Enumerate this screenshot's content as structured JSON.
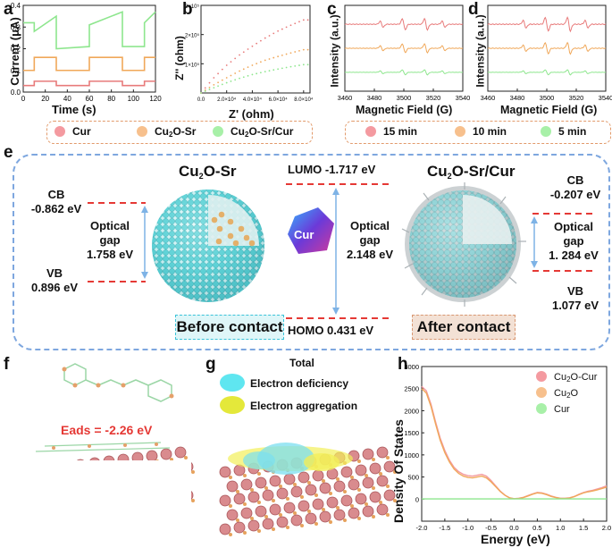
{
  "panels": {
    "a": "a",
    "b": "b",
    "c": "c",
    "d": "d",
    "e": "e",
    "f": "f",
    "g": "g",
    "h": "h"
  },
  "colors": {
    "red": "#e87b7b",
    "orange": "#f0a85a",
    "green": "#8ee68e",
    "pink": "#f49aa0",
    "peach": "#f7c08d",
    "lightgreen": "#a8f0a8",
    "blue": "#7eb3e6",
    "dash": "#e53935"
  },
  "chart_data": [
    {
      "id": "a",
      "type": "line",
      "title": "",
      "xlabel": "Time (s)",
      "ylabel": "Current (μA)",
      "xlim": [
        0,
        120
      ],
      "ylim": [
        0,
        0.4
      ],
      "xticks": [
        "0",
        "20",
        "40",
        "60",
        "80",
        "100",
        "120"
      ],
      "yticks": [
        "0.0",
        "0.1",
        "0.2",
        "0.3",
        "0.4"
      ],
      "series": [
        {
          "name": "Cur",
          "color": "#e87b7b",
          "x": [
            0,
            10,
            10,
            30,
            30,
            60,
            60,
            90,
            90,
            110,
            110,
            120
          ],
          "y": [
            0.03,
            0.03,
            0.05,
            0.05,
            0.03,
            0.03,
            0.05,
            0.05,
            0.03,
            0.03,
            0.05,
            0.05
          ]
        },
        {
          "name": "Cu2O-Sr",
          "color": "#f0a85a",
          "x": [
            0,
            10,
            10,
            30,
            30,
            60,
            60,
            90,
            90,
            110,
            110,
            120
          ],
          "y": [
            0.1,
            0.1,
            0.16,
            0.16,
            0.1,
            0.1,
            0.16,
            0.16,
            0.1,
            0.1,
            0.16,
            0.16
          ]
        },
        {
          "name": "Cu2O-Sr/Cur",
          "color": "#8ee68e",
          "x": [
            0,
            10,
            10,
            30,
            30,
            60,
            60,
            90,
            90,
            110,
            110,
            120
          ],
          "y": [
            0.32,
            0.32,
            0.28,
            0.35,
            0.2,
            0.21,
            0.31,
            0.37,
            0.21,
            0.21,
            0.32,
            0.37
          ]
        }
      ]
    },
    {
      "id": "b",
      "type": "scatter",
      "xlabel": "Z' (ohm)",
      "ylabel": "Z'' (ohm)",
      "xlim": [
        0,
        85000
      ],
      "ylim": [
        0,
        300000
      ],
      "xticks": [
        "0.0",
        "2.0×10⁴",
        "4.0×10⁴",
        "6.0×10⁴",
        "8.0×10⁴"
      ],
      "yticks": [
        "",
        "1×10⁵",
        "2×10⁵",
        "3×10⁵"
      ],
      "series": [
        {
          "name": "Cur",
          "color": "#e87b7b",
          "x": [
            0,
            10000,
            20000,
            30000,
            40000,
            50000,
            60000,
            70000,
            80000
          ],
          "y": [
            0,
            52000,
            95000,
            130000,
            160000,
            188000,
            212000,
            232000,
            250000
          ]
        },
        {
          "name": "Cu2O-Sr",
          "color": "#f0a85a",
          "x": [
            0,
            10000,
            20000,
            30000,
            40000,
            50000,
            60000,
            70000,
            80000
          ],
          "y": [
            0,
            28000,
            52000,
            75000,
            95000,
            112000,
            125000,
            137000,
            148000
          ]
        },
        {
          "name": "Cu2O-Sr/Cur",
          "color": "#8ee68e",
          "x": [
            0,
            10000,
            20000,
            30000,
            40000,
            50000,
            60000,
            70000,
            80000
          ],
          "y": [
            0,
            18000,
            35000,
            50000,
            63000,
            73000,
            82000,
            90000,
            97000
          ]
        }
      ]
    },
    {
      "id": "c",
      "type": "line",
      "xlabel": "Magnetic Field (G)",
      "ylabel": "Intensity (a.u.)",
      "xlim": [
        3460,
        3540
      ],
      "xticks": [
        "3460",
        "3480",
        "3500",
        "3520",
        "3540"
      ],
      "series": [
        {
          "name": "15 min",
          "color": "#e87b7b",
          "offset": 0.78,
          "amp": 0.09
        },
        {
          "name": "10 min",
          "color": "#f0a85a",
          "offset": 0.5,
          "amp": 0.07
        },
        {
          "name": "5 min",
          "color": "#8ee68e",
          "offset": 0.22,
          "amp": 0.04
        }
      ]
    },
    {
      "id": "d",
      "type": "line",
      "xlabel": "Magnetic Field (G)",
      "ylabel": "Intensity (a.u.)",
      "xlim": [
        3460,
        3540
      ],
      "xticks": [
        "3460",
        "3480",
        "3500",
        "3520",
        "3540"
      ],
      "series": [
        {
          "name": "15 min",
          "color": "#e87b7b",
          "offset": 0.78,
          "amp": 0.11
        },
        {
          "name": "10 min",
          "color": "#f0a85a",
          "offset": 0.5,
          "amp": 0.09
        },
        {
          "name": "5 min",
          "color": "#8ee68e",
          "offset": 0.22,
          "amp": 0.04
        }
      ]
    },
    {
      "id": "h",
      "type": "line",
      "xlabel": "Energy (eV)",
      "ylabel": "Density Of States",
      "xlim": [
        -2,
        2
      ],
      "ylim": [
        -500,
        3000
      ],
      "xticks": [
        "-2.0",
        "-1.5",
        "-1.0",
        "-0.5",
        "0.0",
        "0.5",
        "1.0",
        "1.5",
        "2.0"
      ],
      "yticks": [
        "0",
        "500",
        "1000",
        "1500",
        "2000",
        "2500",
        "3000"
      ],
      "series": [
        {
          "name": "Cu2O-Cur",
          "color": "#f49aa0",
          "x": [
            -2,
            -1.9,
            -1.8,
            -1.7,
            -1.6,
            -1.5,
            -1.4,
            -1.3,
            -1.2,
            -1.1,
            -1.0,
            -0.9,
            -0.8,
            -0.7,
            -0.6,
            -0.5,
            -0.4,
            -0.3,
            -0.2,
            -0.1,
            0,
            0.1,
            0.2,
            0.3,
            0.4,
            0.5,
            0.6,
            0.7,
            0.8,
            0.9,
            1.0,
            1.1,
            1.2,
            1.3,
            1.4,
            1.5,
            1.6,
            1.7,
            1.8,
            1.9,
            2.0
          ],
          "y": [
            2550,
            2450,
            2150,
            1750,
            1380,
            1100,
            880,
            720,
            620,
            560,
            530,
            520,
            540,
            560,
            520,
            420,
            300,
            180,
            90,
            30,
            10,
            20,
            40,
            80,
            120,
            150,
            140,
            110,
            70,
            40,
            20,
            20,
            30,
            60,
            110,
            150,
            180,
            200,
            230,
            260,
            300
          ]
        },
        {
          "name": "Cu2O",
          "color": "#f0a85a",
          "x": [
            -2,
            -1.9,
            -1.8,
            -1.7,
            -1.6,
            -1.5,
            -1.4,
            -1.3,
            -1.2,
            -1.1,
            -1.0,
            -0.9,
            -0.8,
            -0.7,
            -0.6,
            -0.5,
            -0.4,
            -0.3,
            -0.2,
            -0.1,
            0,
            0.1,
            0.2,
            0.3,
            0.4,
            0.5,
            0.6,
            0.7,
            0.8,
            0.9,
            1.0,
            1.1,
            1.2,
            1.3,
            1.4,
            1.5,
            1.6,
            1.7,
            1.8,
            1.9,
            2.0
          ],
          "y": [
            2500,
            2400,
            2100,
            1700,
            1330,
            1050,
            840,
            680,
            580,
            520,
            490,
            480,
            500,
            520,
            480,
            390,
            280,
            170,
            85,
            28,
            8,
            15,
            35,
            70,
            110,
            140,
            130,
            100,
            60,
            35,
            15,
            15,
            25,
            55,
            100,
            140,
            165,
            185,
            210,
            240,
            270
          ]
        },
        {
          "name": "Cur",
          "color": "#8ee68e",
          "x": [
            -2,
            2
          ],
          "y": [
            5,
            5
          ]
        }
      ]
    }
  ],
  "a": {
    "xlabel": "Time (s)",
    "ylabel": "Current (μA)"
  },
  "b": {
    "xlabel": "Z' (ohm)",
    "ylabel": "Z'' (ohm)"
  },
  "c": {
    "xlabel": "Magnetic Field (G)",
    "ylabel": "Intensity (a.u.)"
  },
  "d": {
    "xlabel": "Magnetic Field (G)",
    "ylabel": "Intensity (a.u.)"
  },
  "legend1": {
    "cur": "Cur",
    "cu2osr_pre": "Cu",
    "cu2osr_sub": "2",
    "cu2osr_post": "O-Sr",
    "cu2osrcur_pre": "Cu",
    "cu2osrcur_sub": "2",
    "cu2osrcur_post": "O-Sr/Cur"
  },
  "legend2": {
    "t15": "15 min",
    "t10": "10 min",
    "t5": "5 min"
  },
  "e": {
    "title_left_pre": "Cu",
    "title_left_sub": "2",
    "title_left_post": "O-Sr",
    "title_right_pre": "Cu",
    "title_right_sub": "2",
    "title_right_post": "O-Sr/Cur",
    "cb_left": "CB",
    "cb_left_val": "-0.862 eV",
    "gap_left_1": "Optical",
    "gap_left_2": "gap",
    "gap_left_val": "1.758 eV",
    "vb_left": "VB",
    "vb_left_val": "0.896 eV",
    "lumo": "LUMO -1.717 eV",
    "homo": "HOMO 0.431 eV",
    "gap_mid_1": "Optical",
    "gap_mid_2": "gap",
    "gap_mid_val": "2.148 eV",
    "cur_badge": "Cur",
    "cb_right": "CB",
    "cb_right_val": "-0.207 eV",
    "gap_right_1": "Optical",
    "gap_right_2": "gap",
    "gap_right_val": "1. 284 eV",
    "vb_right": "VB",
    "vb_right_val": "1.077 eV",
    "before": "Before contact",
    "after": "After contact"
  },
  "f": {
    "eads": "Eads = -2.26 eV"
  },
  "g": {
    "total": "Total",
    "deficiency": "Electron deficiency",
    "aggregation": "Electron aggregation"
  },
  "h": {
    "xlabel": "Energy (eV)",
    "ylabel": "Density Of States",
    "leg1_pre": "Cu",
    "leg1_sub": "2",
    "leg1_post": "O-Cur",
    "leg2_pre": "Cu",
    "leg2_sub": "2",
    "leg2_post": "O",
    "leg3": "Cur"
  }
}
